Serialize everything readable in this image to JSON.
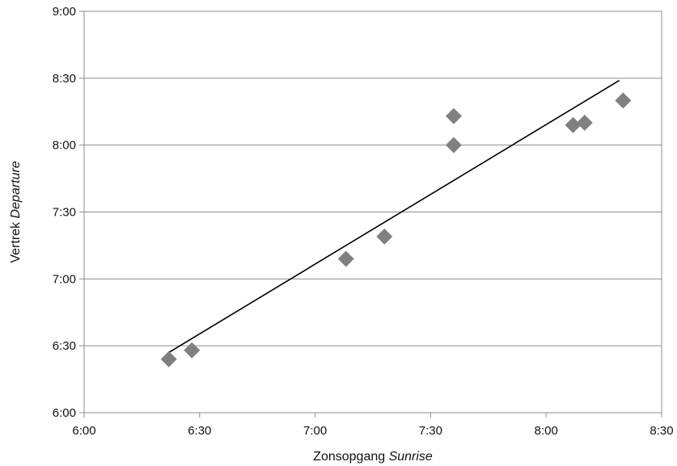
{
  "chart_data": {
    "type": "scatter",
    "title": "",
    "xlabel": {
      "main": "Zonsopgang ",
      "italic": "Sunrise"
    },
    "ylabel": {
      "main": "Vertrek ",
      "italic": "Departure"
    },
    "x_ticks": [
      "6:00",
      "6:30",
      "7:00",
      "7:30",
      "8:00",
      "8:30"
    ],
    "y_ticks": [
      "6:00",
      "6:30",
      "7:00",
      "7:30",
      "8:00",
      "8:30",
      "9:00"
    ],
    "xlim": [
      "6:00",
      "8:30"
    ],
    "ylim": [
      "6:00",
      "9:00"
    ],
    "grid": "horizontal",
    "legend": "none",
    "marker": "diamond",
    "marker_color": "#808080",
    "trendline_color": "#000000",
    "points": [
      {
        "x": "6:22",
        "y": "6:24"
      },
      {
        "x": "6:28",
        "y": "6:28"
      },
      {
        "x": "7:08",
        "y": "7:09"
      },
      {
        "x": "7:18",
        "y": "7:19"
      },
      {
        "x": "7:36",
        "y": "8:00"
      },
      {
        "x": "7:36",
        "y": "8:13"
      },
      {
        "x": "8:07",
        "y": "8:09"
      },
      {
        "x": "8:10",
        "y": "8:10"
      },
      {
        "x": "8:20",
        "y": "8:20"
      }
    ],
    "trendline": [
      {
        "x": "6:22",
        "y": "6:27"
      },
      {
        "x": "8:19",
        "y": "8:29"
      }
    ]
  }
}
